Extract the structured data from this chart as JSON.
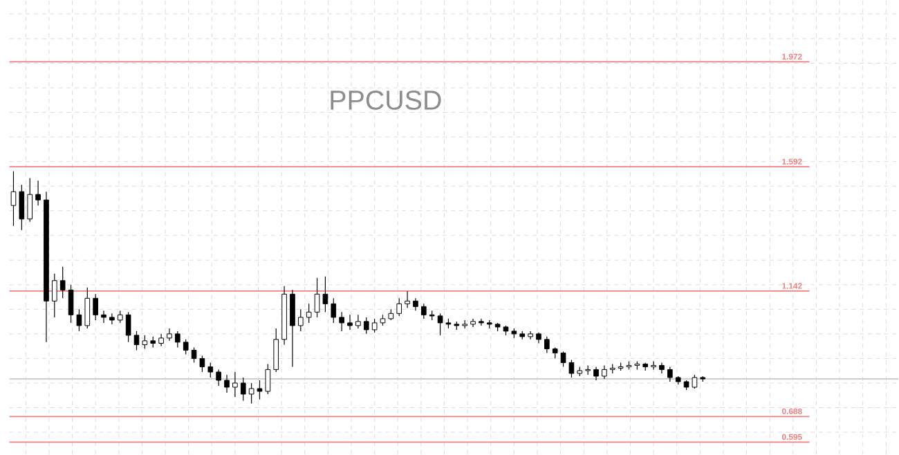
{
  "chart_data": {
    "type": "candlestick",
    "title": "PPCUSD",
    "categories": [
      null,
      null,
      null,
      null,
      null,
      null,
      null,
      null,
      null,
      null,
      null,
      null,
      null,
      null,
      null,
      null,
      null,
      null,
      null,
      null,
      null,
      null,
      null,
      null,
      null,
      null,
      null,
      null,
      null,
      null,
      null,
      null,
      null,
      null,
      null,
      null,
      null,
      null,
      null,
      null,
      null,
      null,
      null,
      null,
      null,
      null,
      null,
      null,
      null,
      null,
      null,
      null,
      null,
      null,
      null,
      null,
      null,
      null,
      null,
      null,
      null,
      null,
      null,
      null,
      null,
      null,
      null,
      null,
      null,
      null,
      null,
      null,
      null,
      null,
      null,
      null,
      null,
      null,
      null,
      null,
      null,
      null,
      null,
      null,
      null
    ],
    "color": "#000000",
    "ohlc": [
      [
        1.452,
        1.576,
        1.378,
        1.502
      ],
      [
        1.502,
        1.527,
        1.363,
        1.403
      ],
      [
        1.403,
        1.551,
        1.393,
        1.492
      ],
      [
        1.492,
        1.542,
        1.452,
        1.472
      ],
      [
        1.472,
        1.502,
        0.957,
        1.106
      ],
      [
        1.106,
        1.205,
        1.047,
        1.18
      ],
      [
        1.18,
        1.23,
        1.116,
        1.146
      ],
      [
        1.146,
        1.165,
        1.027,
        1.056
      ],
      [
        1.056,
        1.076,
        0.997,
        1.017
      ],
      [
        1.017,
        1.155,
        1.007,
        1.116
      ],
      [
        1.116,
        1.131,
        1.037,
        1.056
      ],
      [
        1.056,
        1.071,
        1.027,
        1.047
      ],
      [
        1.047,
        1.061,
        1.022,
        1.037
      ],
      [
        1.037,
        1.071,
        1.027,
        1.056
      ],
      [
        1.056,
        1.066,
        0.957,
        0.982
      ],
      [
        0.982,
        0.997,
        0.928,
        0.948
      ],
      [
        0.948,
        0.982,
        0.933,
        0.962
      ],
      [
        0.962,
        0.977,
        0.938,
        0.953
      ],
      [
        0.953,
        0.987,
        0.943,
        0.972
      ],
      [
        0.972,
        1.007,
        0.962,
        0.987
      ],
      [
        0.987,
        0.997,
        0.938,
        0.957
      ],
      [
        0.957,
        0.967,
        0.913,
        0.928
      ],
      [
        0.928,
        0.938,
        0.883,
        0.898
      ],
      [
        0.898,
        0.908,
        0.849,
        0.868
      ],
      [
        0.868,
        0.883,
        0.829,
        0.849
      ],
      [
        0.849,
        0.858,
        0.799,
        0.819
      ],
      [
        0.819,
        0.839,
        0.774,
        0.794
      ],
      [
        0.794,
        0.849,
        0.759,
        0.809
      ],
      [
        0.809,
        0.829,
        0.745,
        0.769
      ],
      [
        0.769,
        0.809,
        0.735,
        0.789
      ],
      [
        0.789,
        0.819,
        0.75,
        0.779
      ],
      [
        0.779,
        0.878,
        0.769,
        0.858
      ],
      [
        0.858,
        1.007,
        0.849,
        0.967
      ],
      [
        0.967,
        1.16,
        0.948,
        1.131
      ],
      [
        1.131,
        1.146,
        0.868,
        1.017
      ],
      [
        1.017,
        1.076,
        0.997,
        1.047
      ],
      [
        1.047,
        1.096,
        1.027,
        1.066
      ],
      [
        1.066,
        1.19,
        1.047,
        1.131
      ],
      [
        1.131,
        1.195,
        1.066,
        1.096
      ],
      [
        1.096,
        1.116,
        1.027,
        1.047
      ],
      [
        1.047,
        1.066,
        0.997,
        1.027
      ],
      [
        1.027,
        1.056,
        1.002,
        1.017
      ],
      [
        1.017,
        1.056,
        1.007,
        1.032
      ],
      [
        1.032,
        1.047,
        0.987,
        1.002
      ],
      [
        1.002,
        1.042,
        0.992,
        1.027
      ],
      [
        1.027,
        1.056,
        1.017,
        1.042
      ],
      [
        1.042,
        1.076,
        1.037,
        1.061
      ],
      [
        1.061,
        1.116,
        1.052,
        1.096
      ],
      [
        1.096,
        1.141,
        1.081,
        1.106
      ],
      [
        1.106,
        1.116,
        1.071,
        1.086
      ],
      [
        1.086,
        1.096,
        1.042,
        1.056
      ],
      [
        1.056,
        1.071,
        1.037,
        1.052
      ],
      [
        1.052,
        1.061,
        0.982,
        1.027
      ],
      [
        1.027,
        1.042,
        1.007,
        1.022
      ],
      [
        1.022,
        1.032,
        1.002,
        1.017
      ],
      [
        1.017,
        1.037,
        1.007,
        1.022
      ],
      [
        1.022,
        1.042,
        1.012,
        1.032
      ],
      [
        1.032,
        1.042,
        1.017,
        1.027
      ],
      [
        1.027,
        1.037,
        1.007,
        1.022
      ],
      [
        1.022,
        1.027,
        0.997,
        1.012
      ],
      [
        1.012,
        1.017,
        0.982,
        0.997
      ],
      [
        0.997,
        1.007,
        0.972,
        0.987
      ],
      [
        0.987,
        0.997,
        0.967,
        0.977
      ],
      [
        0.977,
        0.997,
        0.967,
        0.987
      ],
      [
        0.987,
        0.992,
        0.953,
        0.967
      ],
      [
        0.967,
        0.977,
        0.918,
        0.933
      ],
      [
        0.933,
        0.938,
        0.898,
        0.918
      ],
      [
        0.918,
        0.923,
        0.868,
        0.883
      ],
      [
        0.883,
        0.893,
        0.829,
        0.844
      ],
      [
        0.844,
        0.868,
        0.834,
        0.854
      ],
      [
        0.854,
        0.873,
        0.839,
        0.858
      ],
      [
        0.858,
        0.868,
        0.819,
        0.834
      ],
      [
        0.834,
        0.873,
        0.824,
        0.858
      ],
      [
        0.858,
        0.878,
        0.844,
        0.863
      ],
      [
        0.863,
        0.883,
        0.854,
        0.868
      ],
      [
        0.868,
        0.888,
        0.858,
        0.873
      ],
      [
        0.873,
        0.888,
        0.858,
        0.878
      ],
      [
        0.878,
        0.883,
        0.854,
        0.868
      ],
      [
        0.868,
        0.888,
        0.858,
        0.873
      ],
      [
        0.873,
        0.883,
        0.844,
        0.858
      ],
      [
        0.858,
        0.868,
        0.814,
        0.829
      ],
      [
        0.829,
        0.834,
        0.804,
        0.814
      ],
      [
        0.814,
        0.819,
        0.784,
        0.794
      ],
      [
        0.794,
        0.839,
        0.789,
        0.829
      ],
      [
        0.829,
        0.834,
        0.814,
        0.824
      ]
    ],
    "ylim": [
      0.551,
      2.195
    ],
    "yticks": [
      {
        "value": 0.631,
        "label": null
      },
      {
        "value": 0.72,
        "label": null
      },
      {
        "value": 0.809,
        "label": null
      },
      {
        "value": 0.898,
        "label": null
      },
      {
        "value": 0.987,
        "label": null
      },
      {
        "value": 1.076,
        "label": null
      },
      {
        "value": 1.165,
        "label": null
      },
      {
        "value": 1.254,
        "label": null
      },
      {
        "value": 1.344,
        "label": null
      },
      {
        "value": 1.433,
        "label": null
      },
      {
        "value": 1.522,
        "label": null
      },
      {
        "value": 1.611,
        "label": null
      },
      {
        "value": 1.7,
        "label": null
      },
      {
        "value": 1.789,
        "label": null
      },
      {
        "value": 1.878,
        "label": null
      },
      {
        "value": 1.967,
        "label": null
      },
      {
        "value": 2.056,
        "label": null
      },
      {
        "value": 2.146,
        "label": null
      }
    ],
    "grid": true,
    "ref_lines": [
      {
        "axis": "y",
        "value": 1.972,
        "label": "1.972",
        "color": "#f08080"
      },
      {
        "axis": "y",
        "value": 1.592,
        "label": "1.592",
        "color": "#f08080"
      },
      {
        "axis": "y",
        "value": 1.142,
        "label": "1.142",
        "color": "#f08080"
      },
      {
        "axis": "y",
        "value": 0.688,
        "label": "0.688",
        "color": "#f08080"
      },
      {
        "axis": "y",
        "value": 0.595,
        "label": "0.595",
        "color": "#f08080"
      },
      {
        "axis": "y",
        "value": 0.824,
        "label": null,
        "color": "#c8c8c8"
      }
    ]
  }
}
